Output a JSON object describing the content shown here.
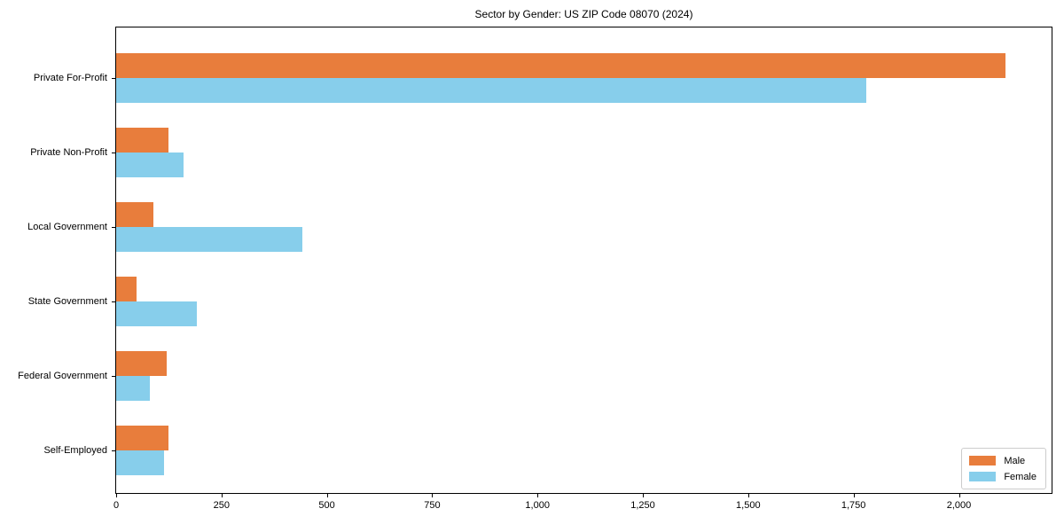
{
  "title": "Sector by Gender: US ZIP Code 08070 (2024)",
  "colors": {
    "male": "#e87d3c",
    "female": "#87ceeb",
    "axis": "#000000",
    "background": "#ffffff",
    "legend_border": "#cccccc"
  },
  "legend": {
    "position": "lower right",
    "items": [
      {
        "label": "Male"
      },
      {
        "label": "Female"
      }
    ]
  },
  "chart_data": {
    "type": "bar",
    "orientation": "horizontal",
    "title": "Sector by Gender: US ZIP Code 08070 (2024)",
    "categories": [
      "Private For-Profit",
      "Private Non-Profit",
      "Local Government",
      "State Government",
      "Federal Government",
      "Self-Employed"
    ],
    "series": [
      {
        "name": "Male",
        "color": "#e87d3c",
        "values": [
          2110,
          123,
          89,
          49,
          120,
          125
        ]
      },
      {
        "name": "Female",
        "color": "#87ceeb",
        "values": [
          1780,
          159,
          441,
          192,
          80,
          113
        ]
      }
    ],
    "xlabel": "",
    "ylabel": "",
    "xlim": [
      0,
      2220
    ],
    "x_ticks": [
      0,
      250,
      500,
      750,
      1000,
      1250,
      1500,
      1750,
      2000
    ],
    "x_tick_labels": [
      "0",
      "250",
      "500",
      "750",
      "1,000",
      "1,250",
      "1,500",
      "1,750",
      "2,000"
    ],
    "grid": false,
    "legend_position": "lower right"
  }
}
